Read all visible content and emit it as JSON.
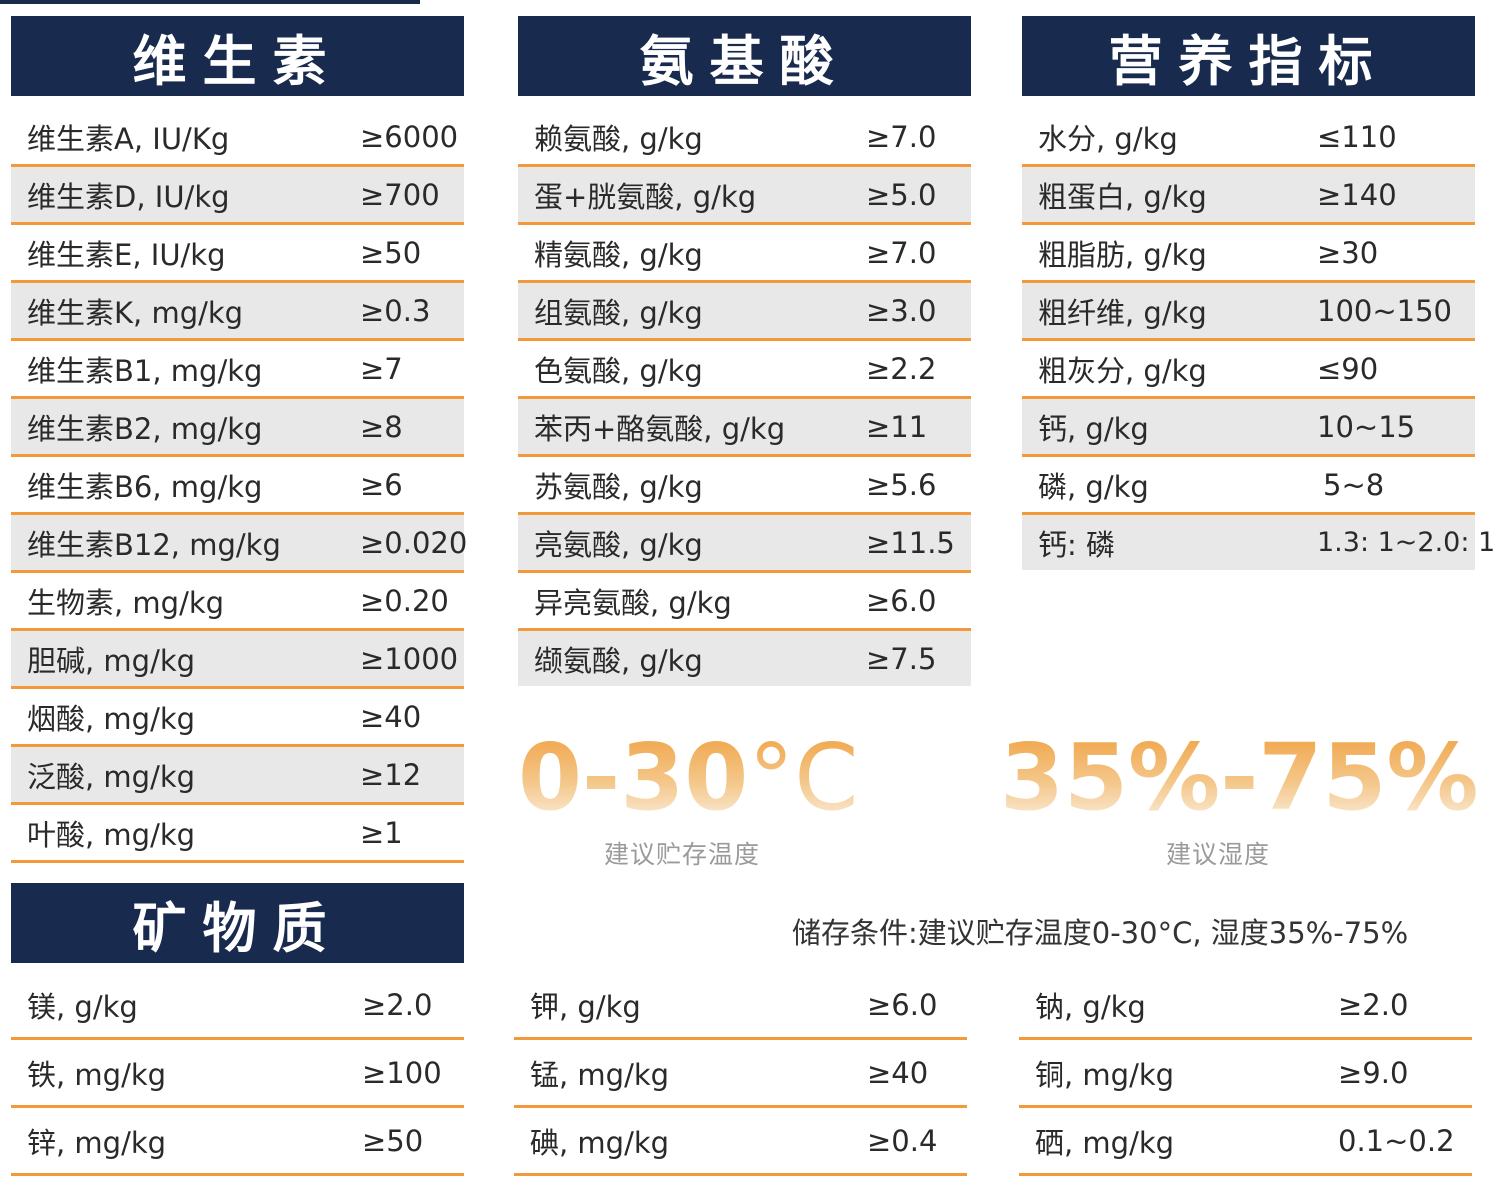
{
  "vitamins": {
    "title": "维生素",
    "rows": [
      {
        "label": "维生素A, IU/Kg",
        "value": "≥6000"
      },
      {
        "label": "维生素D, IU/kg",
        "value": "≥700"
      },
      {
        "label": "维生素E, IU/kg",
        "value": "≥50"
      },
      {
        "label": "维生素K, mg/kg",
        "value": "≥0.3"
      },
      {
        "label": "维生素B1, mg/kg",
        "value": "≥7"
      },
      {
        "label": "维生素B2, mg/kg",
        "value": "≥8"
      },
      {
        "label": "维生素B6, mg/kg",
        "value": "≥6"
      },
      {
        "label": "维生素B12, mg/kg",
        "value": "≥0.020"
      },
      {
        "label": "生物素, mg/kg",
        "value": "≥0.20"
      },
      {
        "label": "胆碱, mg/kg",
        "value": "≥1000"
      },
      {
        "label": "烟酸, mg/kg",
        "value": "≥40"
      },
      {
        "label": "泛酸, mg/kg",
        "value": "≥12"
      },
      {
        "label": "叶酸, mg/kg",
        "value": "≥1"
      }
    ]
  },
  "amino_acids": {
    "title": "氨基酸",
    "rows": [
      {
        "label": "赖氨酸, g/kg",
        "value": "≥7.0"
      },
      {
        "label": "蛋+胱氨酸, g/kg",
        "value": "≥5.0"
      },
      {
        "label": "精氨酸, g/kg",
        "value": "≥7.0"
      },
      {
        "label": "组氨酸, g/kg",
        "value": "≥3.0"
      },
      {
        "label": "色氨酸, g/kg",
        "value": "≥2.2"
      },
      {
        "label": "苯丙+酪氨酸, g/kg",
        "value": "≥11"
      },
      {
        "label": "苏氨酸, g/kg",
        "value": "≥5.6"
      },
      {
        "label": "亮氨酸, g/kg",
        "value": "≥11.5"
      },
      {
        "label": "异亮氨酸, g/kg",
        "value": "≥6.0"
      },
      {
        "label": "缬氨酸, g/kg",
        "value": "≥7.5"
      }
    ]
  },
  "nutrition": {
    "title": "营养指标",
    "rows": [
      {
        "label": "水分, g/kg",
        "value": "≤110"
      },
      {
        "label": "粗蛋白, g/kg",
        "value": "≥140"
      },
      {
        "label": "粗脂肪, g/kg",
        "value": "≥30"
      },
      {
        "label": "粗纤维, g/kg",
        "value": "100~150"
      },
      {
        "label": "粗灰分, g/kg",
        "value": "≤90"
      },
      {
        "label": "钙, g/kg",
        "value": "10~15"
      },
      {
        "label": "磷, g/kg",
        "value": "5~8"
      },
      {
        "label": "钙: 磷",
        "value": "1.3: 1~2.0: 1"
      }
    ]
  },
  "storage": {
    "temperature": {
      "value": "0-30",
      "unit": "°C",
      "caption": "建议贮存温度"
    },
    "humidity": {
      "value": "35%-75%",
      "caption": "建议湿度"
    },
    "note": "储存条件:建议贮存温度0-30°C, 湿度35%-75%"
  },
  "minerals": {
    "title": "矿物质",
    "col1": [
      {
        "label": "镁, g/kg",
        "value": "≥2.0"
      },
      {
        "label": "铁, mg/kg",
        "value": "≥100"
      },
      {
        "label": "锌, mg/kg",
        "value": "≥50"
      }
    ],
    "col2": [
      {
        "label": "钾, g/kg",
        "value": "≥6.0"
      },
      {
        "label": "锰, mg/kg",
        "value": "≥40"
      },
      {
        "label": "碘, mg/kg",
        "value": "≥0.4"
      }
    ],
    "col3": [
      {
        "label": "钠, g/kg",
        "value": "≥2.0"
      },
      {
        "label": "铜, mg/kg",
        "value": "≥9.0"
      },
      {
        "label": "硒, mg/kg",
        "value": "0.1~0.2"
      }
    ]
  }
}
